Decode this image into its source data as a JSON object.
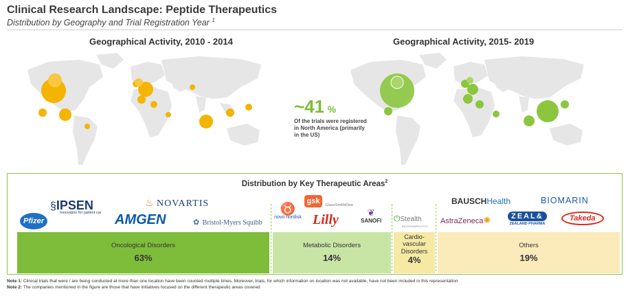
{
  "header": {
    "title": "Clinical Research Landscape: Peptide Therapeutics",
    "subtitle": "Distribution by Geography and Trial Registration Year",
    "subtitle_sup": "1"
  },
  "maps": {
    "left_title": "Geographical Activity, 2010 - 2014",
    "right_title": "Geographical Activity, 2015- 2019",
    "left_color": "#f5b400",
    "right_color": "#8cc63f",
    "land_color": "#e6e6e6"
  },
  "callout": {
    "value": "~41",
    "unit": "%",
    "text": "Of the trials were registered in North America (primarily in the US)"
  },
  "distribution": {
    "title": "Distribution by Key Therapeutic Areas",
    "title_sup": "2",
    "areas": [
      {
        "label": "Oncological Disorders",
        "percent": "63%",
        "color": "#7dbd3a"
      },
      {
        "label": "Metabolic Disorders",
        "percent": "14%",
        "color": "#c9e5a6"
      },
      {
        "label": "Cardio- vascular Disorders",
        "percent": "4%",
        "color": "#f5e9a4"
      },
      {
        "label": "Others",
        "percent": "19%",
        "color": "#fbeaba"
      }
    ],
    "logos": {
      "pfizer": "Pfizer",
      "ipsen": "IPSEN",
      "ipsen_tag": "Innovation for patient car",
      "amgen": "AMGEN",
      "novartis": "NOVARTIS",
      "bms": "Bristol-Myers Squibb",
      "novo": "novo nordisk",
      "gsk": "gsk",
      "gsk_sub": "GlaxoSmithKline",
      "lilly": "Lilly",
      "sanofi": "SANOFI",
      "stealth": "Stealth",
      "stealth_sub": "BIOTHERAPEUTICS",
      "bausch": "BAUSCH",
      "bausch_health": "Health",
      "biomarin": "BIOMARIN",
      "astrazeneca": "AstraZeneca",
      "zealand": "ZEAL&",
      "zealand_sub": "ZEALAND PHARMA",
      "takeda": "Takeda"
    }
  },
  "notes": {
    "note1_label": "Note 1:",
    "note1_text": " Clinical trials that were / are being conducted at more than one location have been counted multiple times. Moreover, trials, for which information on location was not available, have not been included in this representation",
    "note2_label": "Note 2:",
    "note2_text": " The companies mentioned in the figure are those that have initiatives focused on the different therapeutic areas covered"
  }
}
